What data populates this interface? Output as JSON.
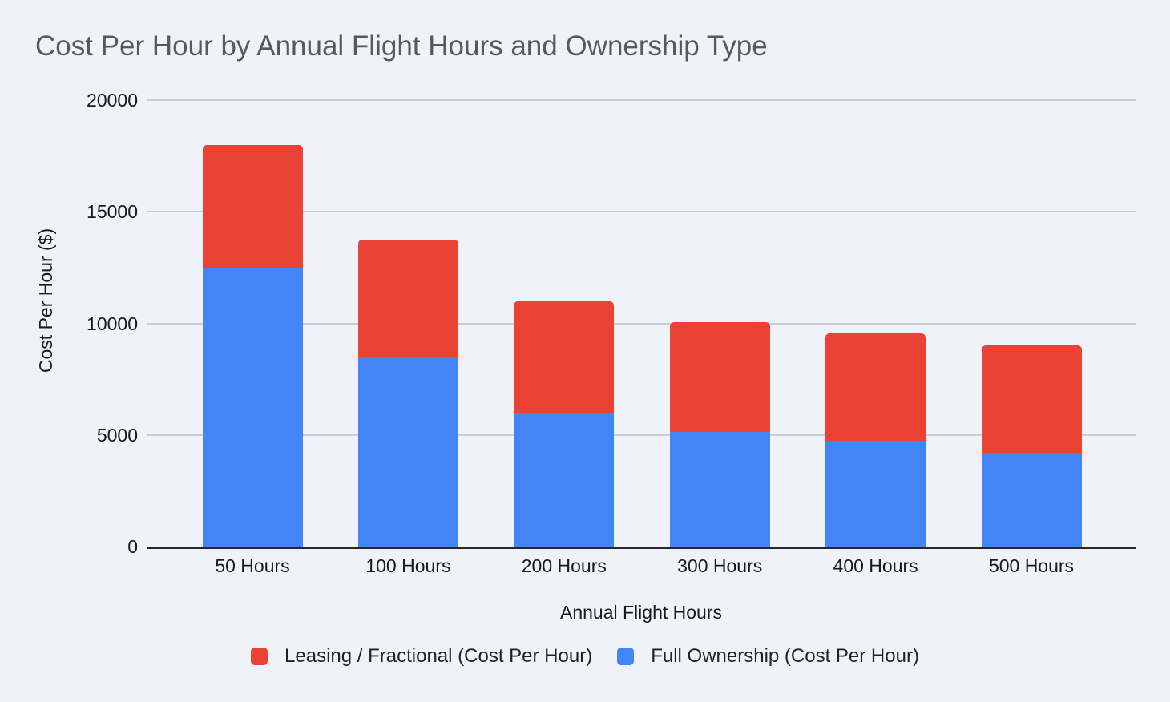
{
  "chart_data": {
    "type": "bar",
    "stacked": true,
    "title": "Cost Per Hour by Annual Flight Hours and Ownership Type",
    "xlabel": "Annual Flight Hours",
    "ylabel": "Cost Per Hour ($)",
    "categories": [
      "50 Hours",
      "100 Hours",
      "200 Hours",
      "300 Hours",
      "400 Hours",
      "500 Hours"
    ],
    "series": [
      {
        "name": "Full Ownership (Cost Per Hour)",
        "color": "#4285F4",
        "stack_position": "bottom",
        "values": [
          12500,
          8500,
          6000,
          5150,
          4750,
          4200
        ]
      },
      {
        "name": "Leasing / Fractional (Cost Per Hour)",
        "color": "#EA4335",
        "stack_position": "top",
        "values": [
          5500,
          5250,
          5000,
          4900,
          4800,
          4800
        ]
      }
    ],
    "stack_totals": [
      18000,
      13750,
      11000,
      10050,
      9550,
      9000
    ],
    "ylim": [
      0,
      20000
    ],
    "yticks": [
      0,
      5000,
      10000,
      15000,
      20000
    ],
    "grid": true,
    "legend": {
      "position": "bottom",
      "items": [
        {
          "label": "Leasing / Fractional (Cost Per Hour)",
          "color": "#EA4335"
        },
        {
          "label": "Full Ownership (Cost Per Hour)",
          "color": "#4285F4"
        }
      ]
    },
    "colors": {
      "background": "#EFF2F8",
      "gridline": "#C7CBD2",
      "axis_line": "#26282B",
      "title_text": "#56595D",
      "tick_text": "#17191C"
    }
  }
}
